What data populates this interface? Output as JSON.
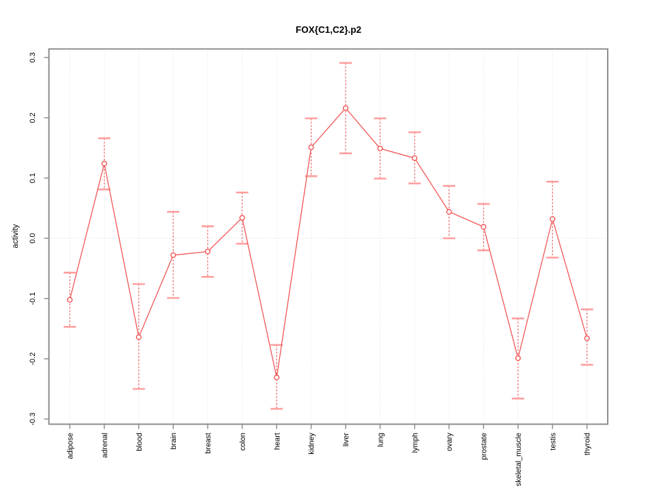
{
  "window": {
    "background": "#ffffff"
  },
  "chart_data": {
    "type": "line",
    "title": "FOX{C1,C2}.p2",
    "xlabel": "",
    "ylabel": "activity",
    "categories": [
      "adipose",
      "adrenal",
      "blood",
      "brain",
      "breast",
      "colon",
      "heart",
      "kidney",
      "liver",
      "lung",
      "lymph",
      "ovary",
      "prostate",
      "skeletal_muscle",
      "testis",
      "thyroid"
    ],
    "series": [
      {
        "name": "activity",
        "values": [
          -0.102,
          0.124,
          -0.164,
          -0.028,
          -0.022,
          0.034,
          -0.231,
          0.151,
          0.216,
          0.149,
          0.133,
          0.044,
          0.019,
          -0.199,
          0.032,
          -0.166
        ],
        "err_upper": [
          -0.057,
          0.166,
          -0.076,
          0.044,
          0.02,
          0.076,
          -0.177,
          0.199,
          0.291,
          0.199,
          0.176,
          0.087,
          0.057,
          -0.133,
          0.094,
          -0.118
        ],
        "err_lower": [
          -0.147,
          0.081,
          -0.25,
          -0.099,
          -0.064,
          -0.009,
          -0.283,
          0.103,
          0.141,
          0.099,
          0.091,
          0.0,
          -0.02,
          -0.266,
          -0.032,
          -0.21
        ]
      }
    ],
    "yticks": [
      -0.3,
      -0.2,
      -0.1,
      0.0,
      0.1,
      0.2,
      0.3
    ],
    "ytick_labels": [
      "-0.3",
      "-0.2",
      "-0.1",
      "0.0",
      "0.1",
      "0.2",
      "0.3"
    ],
    "ylim": [
      -0.308,
      0.314
    ],
    "grid": {
      "vertical_dotted_at_categories": true,
      "horizontal_dotted_at_zero": true
    },
    "legend": "none",
    "marker": "open-circle",
    "error_bar_style": "dashed-stem-with-caps",
    "colors": {
      "line": "#f25555",
      "marker_stroke": "#f25555",
      "marker_fill": "#ffffff",
      "error_stem": "#f06a6a",
      "error_cap": "#ff9e9e",
      "grid": "#d7d7d7",
      "zero_line": "#e9c6c6",
      "box": "#8c8c8c",
      "tick": "#8c8c8c",
      "text": "#000000"
    }
  }
}
